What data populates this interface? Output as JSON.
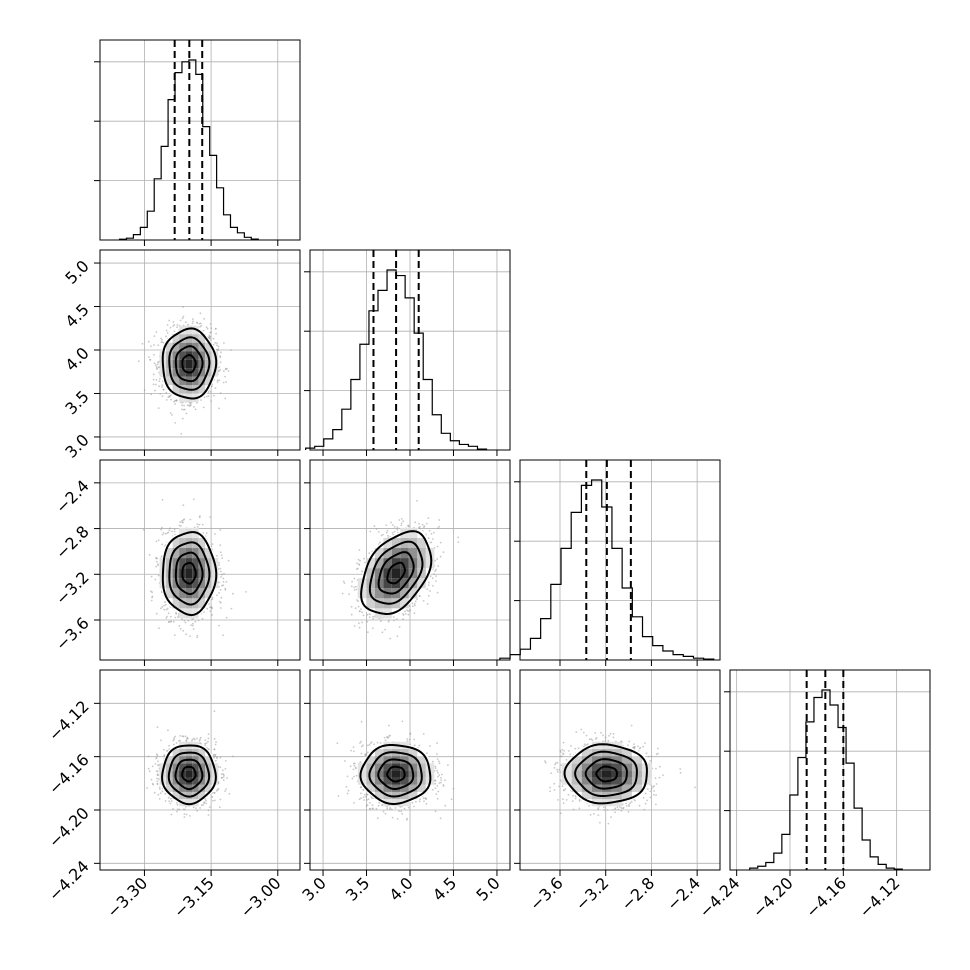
{
  "chart_data": {
    "type": "corner",
    "n_params": 4,
    "params": [
      {
        "index": 0,
        "range": [
          -3.4,
          -2.95
        ],
        "ticks": [
          -3.3,
          -3.15,
          -3.0
        ],
        "tick_labels": [
          "−3.30",
          "−3.15",
          "−3.00"
        ],
        "mean": -3.2,
        "sigma": 0.03,
        "quantiles": [
          -3.232,
          -3.199,
          -3.17
        ],
        "hist": [
          0.004,
          0.01,
          0.03,
          0.07,
          0.16,
          0.34,
          0.52,
          0.78,
          0.93,
          0.99,
          1.0,
          0.92,
          0.63,
          0.47,
          0.29,
          0.14,
          0.07,
          0.04,
          0.015,
          0.005
        ]
      },
      {
        "index": 1,
        "range": [
          2.85,
          5.15
        ],
        "ticks": [
          3.0,
          3.5,
          4.0,
          4.5,
          5.0
        ],
        "tick_labels": [
          "3.0",
          "3.5",
          "4.0",
          "4.5",
          "5.0"
        ],
        "mean": 3.84,
        "sigma": 0.2,
        "quantiles": [
          3.58,
          3.84,
          4.1
        ],
        "hist": [
          0.01,
          0.02,
          0.06,
          0.11,
          0.22,
          0.38,
          0.57,
          0.75,
          0.86,
          0.97,
          0.94,
          0.82,
          0.63,
          0.38,
          0.19,
          0.09,
          0.05,
          0.03,
          0.02,
          0.005
        ]
      },
      {
        "index": 2,
        "range": [
          -3.95,
          -2.2
        ],
        "ticks": [
          -3.6,
          -3.2,
          -2.8,
          -2.4
        ],
        "tick_labels": [
          "−3.6",
          "−3.2",
          "−2.8",
          "−2.4"
        ],
        "mean": -3.19,
        "sigma": 0.18,
        "quantiles": [
          -3.37,
          -3.19,
          -2.98
        ],
        "hist": [
          0.01,
          0.03,
          0.06,
          0.12,
          0.23,
          0.42,
          0.62,
          0.82,
          0.97,
          1.0,
          0.85,
          0.62,
          0.4,
          0.24,
          0.13,
          0.08,
          0.05,
          0.03,
          0.02,
          0.01,
          0.005
        ]
      },
      {
        "index": 3,
        "range": [
          -4.245,
          -4.095
        ],
        "ticks": [
          -4.24,
          -4.2,
          -4.16,
          -4.12
        ],
        "tick_labels": [
          "−4.24",
          "−4.20",
          "−4.16",
          "−4.12"
        ],
        "mean": -4.173,
        "sigma": 0.011,
        "quantiles": [
          -4.1875,
          -4.1735,
          -4.16
        ],
        "hist": [
          0.01,
          0.02,
          0.04,
          0.09,
          0.19,
          0.4,
          0.6,
          0.79,
          0.92,
          0.96,
          0.88,
          0.76,
          0.57,
          0.33,
          0.16,
          0.07,
          0.03,
          0.01,
          0.005
        ]
      }
    ],
    "correlations": {
      "1_0": 0.0,
      "2_0": 0.0,
      "2_1": 0.4,
      "3_0": 0.0,
      "3_1": 0.0,
      "3_2": 0.0
    },
    "contour_levels_sigma": [
      0.5,
      1.0,
      1.5,
      2.0
    ],
    "grid": true,
    "colors": {
      "line": "#000000",
      "density": "#000000",
      "scatter": "#9a9a9a",
      "grid": "#b0b0b0"
    }
  }
}
